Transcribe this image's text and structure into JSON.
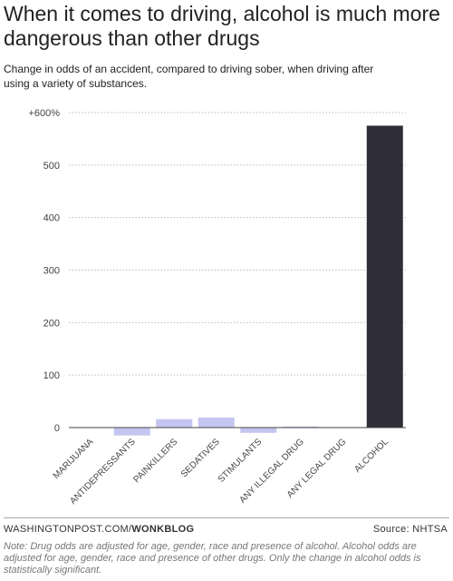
{
  "chart_data": {
    "type": "bar",
    "title": "When it comes to driving, alcohol is much more dangerous than other drugs",
    "subtitle": "Change in odds of an accident, compared to driving sober, when driving after using a variety of substances.",
    "categories": [
      "MARIJUANA",
      "ANTIDEPRESSANTS",
      "PAINKILLERS",
      "SEDATIVES",
      "STIMULANTS",
      "ANY ILLEGAL DRUG",
      "ANY LEGAL DRUG",
      "ALCOHOL"
    ],
    "values": [
      0,
      -15,
      16,
      19,
      -10,
      2,
      0,
      575
    ],
    "ylim": [
      -20,
      600
    ],
    "yticks": [
      0,
      100,
      200,
      300,
      400,
      500,
      600
    ],
    "ytick_labels": [
      "0",
      "100",
      "200",
      "300",
      "400",
      "500",
      "+600%"
    ],
    "xlabel": "",
    "ylabel": "",
    "grid": true,
    "colors": {
      "other": "#c5c5f1",
      "highlight": "#2e2d38",
      "grid": "#bbbbbb",
      "axis": "#444444"
    },
    "highlight_category": "ALCOHOL"
  },
  "footer": {
    "source_prefix": "WASHINGTONPOST.COM/",
    "source_bold": "WONKBLOG",
    "source_right": "Source: NHTSA",
    "note": "Note: Drug odds are adjusted for age, gender, race and presence of alcohol. Alcohol odds are adjusted for age, gender, race and presence of other drugs. Only the change in alcohol odds is statistically significant."
  }
}
